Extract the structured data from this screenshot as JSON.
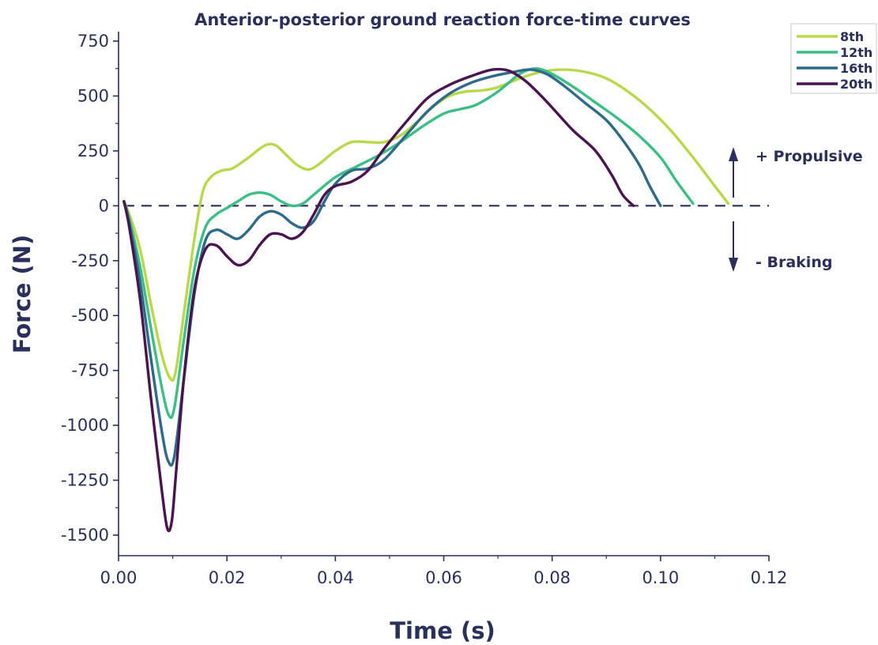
{
  "chart_data": {
    "type": "line",
    "title": "Anterior-posterior ground reaction force-time curves",
    "xlabel": "Time (s)",
    "ylabel": "Force (N)",
    "xlim": [
      0,
      0.12
    ],
    "ylim": [
      -1500,
      750
    ],
    "xticks": [
      0.0,
      0.02,
      0.04,
      0.06,
      0.08,
      0.1,
      0.12
    ],
    "xtick_labels": [
      "0.00",
      "0.02",
      "0.04",
      "0.06",
      "0.08",
      "0.10",
      "0.12"
    ],
    "yticks": [
      750,
      500,
      250,
      0,
      -250,
      -500,
      -750,
      -1000,
      -1250,
      -1500
    ],
    "ytick_labels": [
      "750",
      "500",
      "250",
      "0",
      "-250",
      "-500",
      "-750",
      "-1000",
      "-1250",
      "-1500"
    ],
    "grid": false,
    "legend_position": "top-right",
    "zero_line": "dashed",
    "annotations": {
      "propulsive": "+ Propulsive",
      "braking": "- Braking"
    },
    "series": [
      {
        "name": "8th",
        "color": "#b9d84a",
        "points": [
          [
            0.001,
            20
          ],
          [
            0.002,
            -40
          ],
          [
            0.004,
            -200
          ],
          [
            0.006,
            -450
          ],
          [
            0.008,
            -680
          ],
          [
            0.0095,
            -785
          ],
          [
            0.0105,
            -760
          ],
          [
            0.012,
            -500
          ],
          [
            0.014,
            -150
          ],
          [
            0.0155,
            60
          ],
          [
            0.017,
            130
          ],
          [
            0.019,
            160
          ],
          [
            0.021,
            170
          ],
          [
            0.024,
            220
          ],
          [
            0.027,
            275
          ],
          [
            0.029,
            275
          ],
          [
            0.031,
            230
          ],
          [
            0.033,
            185
          ],
          [
            0.035,
            165
          ],
          [
            0.037,
            190
          ],
          [
            0.04,
            250
          ],
          [
            0.043,
            290
          ],
          [
            0.046,
            290
          ],
          [
            0.049,
            290
          ],
          [
            0.052,
            320
          ],
          [
            0.055,
            380
          ],
          [
            0.058,
            450
          ],
          [
            0.061,
            500
          ],
          [
            0.064,
            520
          ],
          [
            0.067,
            525
          ],
          [
            0.07,
            540
          ],
          [
            0.074,
            580
          ],
          [
            0.078,
            610
          ],
          [
            0.082,
            620
          ],
          [
            0.086,
            610
          ],
          [
            0.09,
            580
          ],
          [
            0.094,
            520
          ],
          [
            0.098,
            440
          ],
          [
            0.102,
            340
          ],
          [
            0.106,
            220
          ],
          [
            0.11,
            90
          ],
          [
            0.1125,
            10
          ]
        ]
      },
      {
        "name": "12th",
        "color": "#3cbf86",
        "points": [
          [
            0.001,
            20
          ],
          [
            0.002,
            -60
          ],
          [
            0.004,
            -280
          ],
          [
            0.006,
            -560
          ],
          [
            0.008,
            -830
          ],
          [
            0.0093,
            -955
          ],
          [
            0.0103,
            -920
          ],
          [
            0.012,
            -620
          ],
          [
            0.014,
            -290
          ],
          [
            0.016,
            -100
          ],
          [
            0.018,
            -40
          ],
          [
            0.02,
            -10
          ],
          [
            0.022,
            20
          ],
          [
            0.024,
            50
          ],
          [
            0.026,
            60
          ],
          [
            0.028,
            50
          ],
          [
            0.03,
            20
          ],
          [
            0.032,
            0
          ],
          [
            0.034,
            10
          ],
          [
            0.036,
            50
          ],
          [
            0.04,
            130
          ],
          [
            0.044,
            180
          ],
          [
            0.048,
            230
          ],
          [
            0.052,
            290
          ],
          [
            0.056,
            360
          ],
          [
            0.06,
            420
          ],
          [
            0.063,
            440
          ],
          [
            0.066,
            460
          ],
          [
            0.07,
            520
          ],
          [
            0.074,
            600
          ],
          [
            0.077,
            625
          ],
          [
            0.08,
            600
          ],
          [
            0.084,
            540
          ],
          [
            0.088,
            470
          ],
          [
            0.092,
            400
          ],
          [
            0.096,
            320
          ],
          [
            0.1,
            220
          ],
          [
            0.103,
            110
          ],
          [
            0.106,
            10
          ]
        ]
      },
      {
        "name": "16th",
        "color": "#2d6a8c",
        "points": [
          [
            0.001,
            20
          ],
          [
            0.002,
            -80
          ],
          [
            0.004,
            -350
          ],
          [
            0.006,
            -700
          ],
          [
            0.008,
            -1030
          ],
          [
            0.0092,
            -1165
          ],
          [
            0.0103,
            -1140
          ],
          [
            0.012,
            -800
          ],
          [
            0.014,
            -400
          ],
          [
            0.016,
            -160
          ],
          [
            0.018,
            -110
          ],
          [
            0.02,
            -130
          ],
          [
            0.022,
            -150
          ],
          [
            0.024,
            -110
          ],
          [
            0.026,
            -50
          ],
          [
            0.028,
            -25
          ],
          [
            0.03,
            -40
          ],
          [
            0.032,
            -80
          ],
          [
            0.034,
            -100
          ],
          [
            0.036,
            -70
          ],
          [
            0.038,
            20
          ],
          [
            0.04,
            100
          ],
          [
            0.043,
            160
          ],
          [
            0.046,
            170
          ],
          [
            0.049,
            210
          ],
          [
            0.053,
            320
          ],
          [
            0.057,
            430
          ],
          [
            0.061,
            510
          ],
          [
            0.065,
            560
          ],
          [
            0.069,
            590
          ],
          [
            0.073,
            610
          ],
          [
            0.076,
            620
          ],
          [
            0.079,
            600
          ],
          [
            0.082,
            550
          ],
          [
            0.086,
            470
          ],
          [
            0.09,
            390
          ],
          [
            0.093,
            300
          ],
          [
            0.096,
            190
          ],
          [
            0.098,
            90
          ],
          [
            0.1,
            0
          ]
        ]
      },
      {
        "name": "20th",
        "color": "#4a1450",
        "points": [
          [
            0.001,
            20
          ],
          [
            0.002,
            -100
          ],
          [
            0.004,
            -430
          ],
          [
            0.006,
            -880
          ],
          [
            0.008,
            -1300
          ],
          [
            0.009,
            -1470
          ],
          [
            0.0098,
            -1440
          ],
          [
            0.0105,
            -1250
          ],
          [
            0.012,
            -800
          ],
          [
            0.014,
            -380
          ],
          [
            0.016,
            -200
          ],
          [
            0.018,
            -180
          ],
          [
            0.02,
            -230
          ],
          [
            0.022,
            -270
          ],
          [
            0.024,
            -250
          ],
          [
            0.026,
            -180
          ],
          [
            0.028,
            -130
          ],
          [
            0.03,
            -130
          ],
          [
            0.032,
            -150
          ],
          [
            0.034,
            -120
          ],
          [
            0.036,
            -40
          ],
          [
            0.038,
            50
          ],
          [
            0.04,
            90
          ],
          [
            0.043,
            110
          ],
          [
            0.046,
            160
          ],
          [
            0.049,
            260
          ],
          [
            0.053,
            380
          ],
          [
            0.057,
            490
          ],
          [
            0.061,
            550
          ],
          [
            0.065,
            590
          ],
          [
            0.069,
            620
          ],
          [
            0.072,
            615
          ],
          [
            0.075,
            570
          ],
          [
            0.078,
            500
          ],
          [
            0.081,
            420
          ],
          [
            0.084,
            340
          ],
          [
            0.088,
            250
          ],
          [
            0.091,
            140
          ],
          [
            0.093,
            50
          ],
          [
            0.095,
            0
          ]
        ]
      }
    ]
  }
}
